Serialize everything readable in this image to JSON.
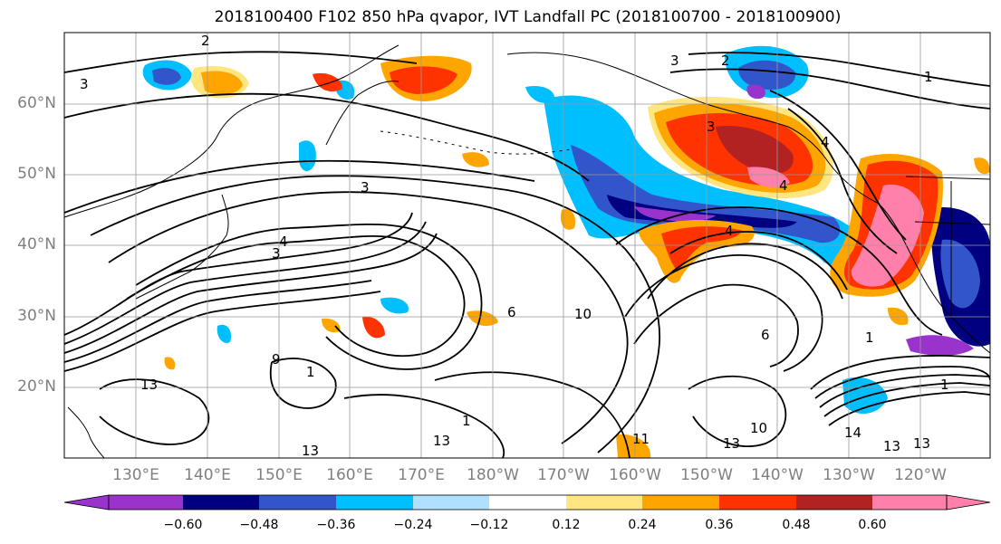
{
  "title": "2018100400 F102 850 hPa qvapor, IVT Landfall PC (2018100700 - 2018100900)",
  "latitude_labels": [
    "60°N",
    "50°N",
    "40°N",
    "30°N",
    "20°N"
  ],
  "longitude_labels": [
    "130°E",
    "140°E",
    "150°E",
    "160°E",
    "170°E",
    "180°W",
    "170°W",
    "160°W",
    "150°W",
    "140°W",
    "130°W",
    "120°W"
  ],
  "colorbar": {
    "tick_labels": [
      "−0.60",
      "−0.48",
      "−0.36",
      "−0.24",
      "−0.12",
      "0.12",
      "0.24",
      "0.36",
      "0.48",
      "0.60"
    ],
    "colors": [
      "#9933cc",
      "#000080",
      "#3355cc",
      "#00bfff",
      "#b0e0ff",
      "#ffffff",
      "#ffe680",
      "#ffa500",
      "#ff3300",
      "#b22222",
      "#ff80aa"
    ]
  },
  "contour_labels": [
    "2",
    "3",
    "3",
    "2",
    "1",
    "3",
    "4",
    "3",
    "4",
    "3",
    "4",
    "6",
    "10",
    "13",
    "9",
    "1",
    "13",
    "11",
    "13",
    "1",
    "13",
    "14",
    "13",
    "1",
    "1",
    "6",
    "10",
    "13",
    "4"
  ],
  "legend_colors": {
    "strong_negative": "#9933cc",
    "negative": "#3355cc",
    "weak_negative": "#00bfff",
    "weak_positive": "#ffe680",
    "positive": "#ffa500",
    "strong_positive": "#ff3300",
    "very_strong_positive": "#b22222",
    "extreme_positive": "#ff80aa"
  }
}
